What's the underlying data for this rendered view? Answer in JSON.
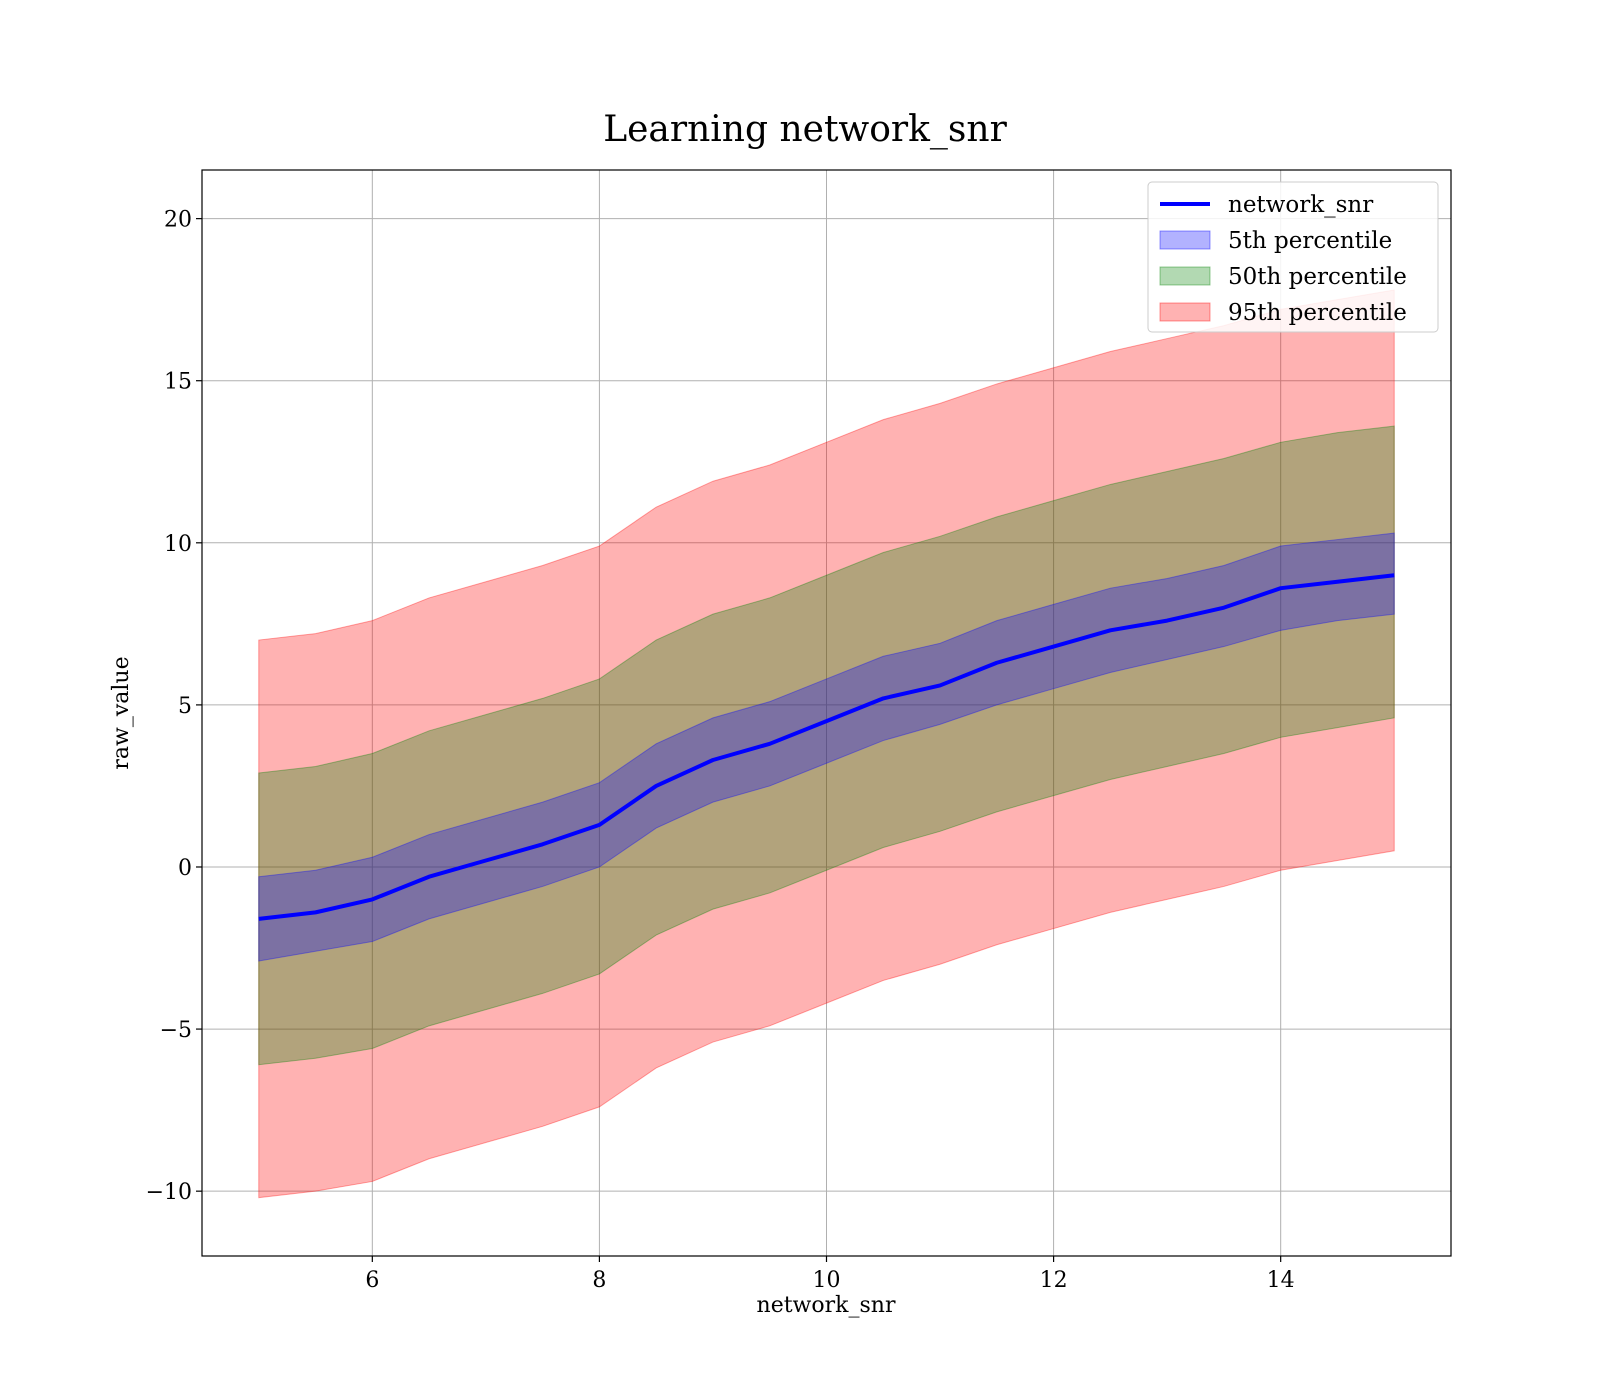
{
  "chart_data": {
    "type": "line",
    "title": "Learning network_snr",
    "xlabel": "network_snr",
    "ylabel": "raw_value",
    "xlim": [
      4.5,
      15.5
    ],
    "ylim": [
      -12,
      21.5
    ],
    "xticks": [
      6,
      8,
      10,
      12,
      14
    ],
    "yticks": [
      -10,
      -5,
      0,
      5,
      10,
      15,
      20
    ],
    "xtick_labels": [
      "6",
      "8",
      "10",
      "12",
      "14"
    ],
    "ytick_labels": [
      "−10",
      "−5",
      "0",
      "5",
      "10",
      "15",
      "20"
    ],
    "grid": true,
    "legend_position": "top-right",
    "x": [
      5,
      5.5,
      6,
      6.5,
      7,
      7.5,
      8,
      8.5,
      9,
      9.5,
      10,
      10.5,
      11,
      11.5,
      12,
      12.5,
      13,
      13.5,
      14,
      14.5,
      15
    ],
    "series": [
      {
        "name": "network_snr",
        "kind": "line",
        "color": "#0000ff",
        "values": [
          -1.6,
          -1.4,
          -1.0,
          -0.3,
          0.2,
          0.7,
          1.3,
          2.5,
          3.3,
          3.8,
          4.5,
          5.2,
          5.6,
          6.3,
          6.8,
          7.3,
          7.6,
          8.0,
          8.6,
          8.8,
          9.0
        ]
      },
      {
        "name": "5th percentile",
        "kind": "band",
        "color": "#0000ff",
        "lower": [
          -2.9,
          -2.6,
          -2.3,
          -1.6,
          -1.1,
          -0.6,
          0.0,
          1.2,
          2.0,
          2.5,
          3.2,
          3.9,
          4.4,
          5.0,
          5.5,
          6.0,
          6.4,
          6.8,
          7.3,
          7.6,
          7.8
        ],
        "upper": [
          -0.3,
          -0.1,
          0.3,
          1.0,
          1.5,
          2.0,
          2.6,
          3.8,
          4.6,
          5.1,
          5.8,
          6.5,
          6.9,
          7.6,
          8.1,
          8.6,
          8.9,
          9.3,
          9.9,
          10.1,
          10.3
        ]
      },
      {
        "name": "50th percentile",
        "kind": "band",
        "color": "#008000",
        "lower": [
          -6.1,
          -5.9,
          -5.6,
          -4.9,
          -4.4,
          -3.9,
          -3.3,
          -2.1,
          -1.3,
          -0.8,
          -0.1,
          0.6,
          1.1,
          1.7,
          2.2,
          2.7,
          3.1,
          3.5,
          4.0,
          4.3,
          4.6
        ],
        "upper": [
          2.9,
          3.1,
          3.5,
          4.2,
          4.7,
          5.2,
          5.8,
          7.0,
          7.8,
          8.3,
          9.0,
          9.7,
          10.2,
          10.8,
          11.3,
          11.8,
          12.2,
          12.6,
          13.1,
          13.4,
          13.6
        ]
      },
      {
        "name": "95th percentile",
        "kind": "band",
        "color": "#ff0000",
        "lower": [
          -10.2,
          -10.0,
          -9.7,
          -9.0,
          -8.5,
          -8.0,
          -7.4,
          -6.2,
          -5.4,
          -4.9,
          -4.2,
          -3.5,
          -3.0,
          -2.4,
          -1.9,
          -1.4,
          -1.0,
          -0.6,
          -0.1,
          0.2,
          0.5
        ],
        "upper": [
          7.0,
          7.2,
          7.6,
          8.3,
          8.8,
          9.3,
          9.9,
          11.1,
          11.9,
          12.4,
          13.1,
          13.8,
          14.3,
          14.9,
          15.4,
          15.9,
          16.3,
          16.7,
          17.2,
          17.5,
          17.8
        ]
      }
    ]
  }
}
